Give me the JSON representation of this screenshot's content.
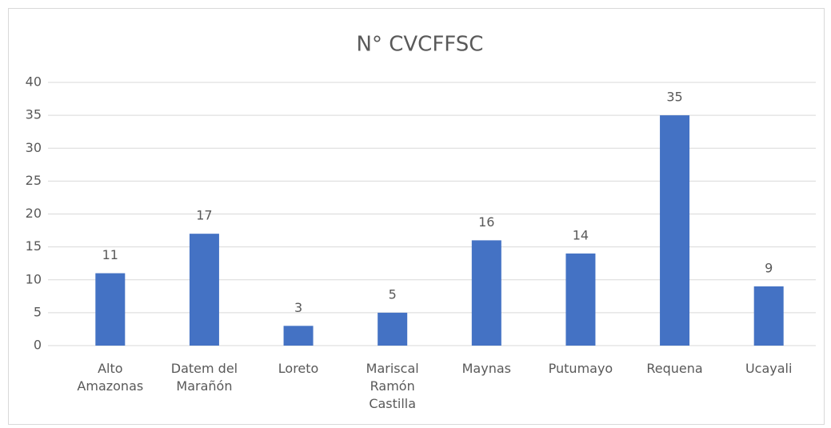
{
  "chart_data": {
    "type": "bar",
    "title": "N° CVCFFSC",
    "categories": [
      "Alto Amazonas",
      "Datem del Marañón",
      "Loreto",
      "Mariscal Ramón Castilla",
      "Maynas",
      "Putumayo",
      "Requena",
      "Ucayali"
    ],
    "values": [
      11,
      17,
      3,
      5,
      16,
      14,
      35,
      9
    ],
    "color": "#4472c4",
    "ylim": [
      0,
      40
    ],
    "yticks": [
      0,
      5,
      10,
      15,
      20,
      25,
      30,
      35,
      40
    ],
    "grid": true,
    "data_labels": true
  }
}
